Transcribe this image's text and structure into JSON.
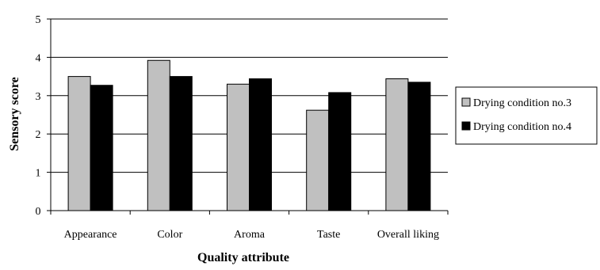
{
  "chart_data": {
    "type": "bar",
    "title": "",
    "xlabel": "Quality attribute",
    "ylabel": "Sensory score",
    "ylim": [
      0,
      5
    ],
    "yticks": [
      0,
      1,
      2,
      3,
      4,
      5
    ],
    "grid": "major y gridlines",
    "legend_position": "right",
    "categories": [
      "Appearance",
      "Color",
      "Aroma",
      "Taste",
      "Overall liking"
    ],
    "series": [
      {
        "name": "Drying condition no.3",
        "color": "#c0c0c0",
        "values": [
          3.5,
          3.92,
          3.3,
          2.62,
          3.44
        ]
      },
      {
        "name": "Drying condition no.4",
        "color": "#000000",
        "values": [
          3.27,
          3.5,
          3.44,
          3.08,
          3.35
        ]
      }
    ]
  }
}
